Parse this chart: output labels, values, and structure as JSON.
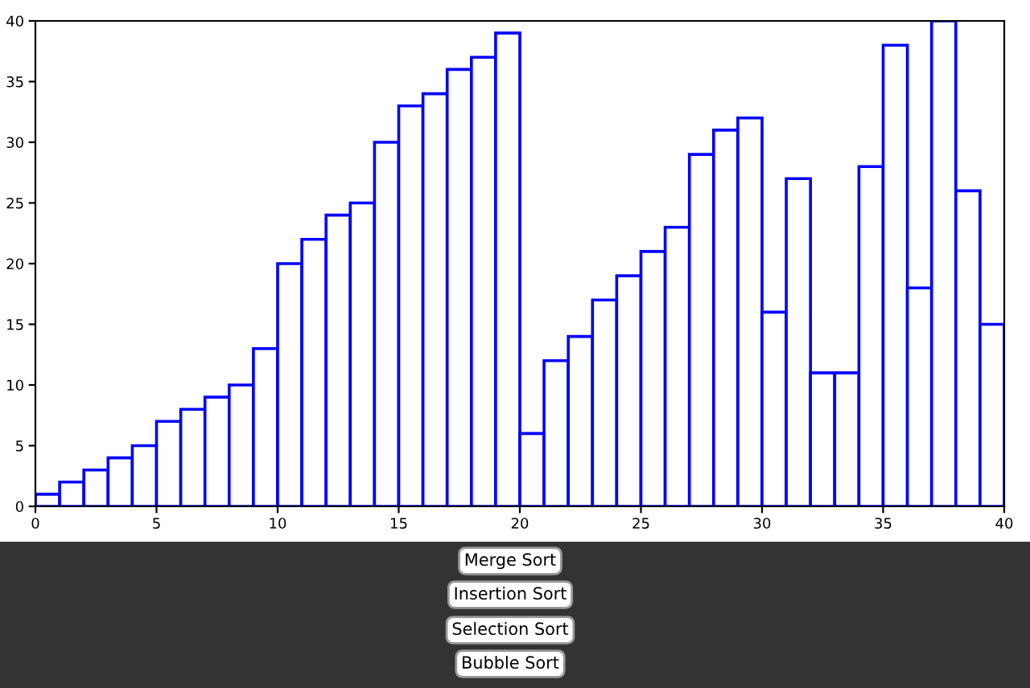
{
  "chart_data": {
    "type": "histogram",
    "bins": [
      0,
      1,
      2,
      3,
      4,
      5,
      6,
      7,
      8,
      9,
      10,
      11,
      12,
      13,
      14,
      15,
      16,
      17,
      18,
      19,
      20,
      21,
      22,
      23,
      24,
      25,
      26,
      27,
      28,
      29,
      30,
      31,
      32,
      33,
      34,
      35,
      36,
      37,
      38,
      39,
      40
    ],
    "values": [
      1,
      2,
      3,
      4,
      5,
      7,
      8,
      9,
      10,
      13,
      20,
      22,
      24,
      25,
      30,
      33,
      34,
      36,
      37,
      39,
      6,
      12,
      14,
      17,
      19,
      21,
      23,
      29,
      31,
      32,
      16,
      27,
      11,
      11,
      28,
      38,
      18,
      40,
      26,
      15
    ],
    "color": "#0000ff",
    "xlim": [
      0,
      40
    ],
    "xticks": [
      0,
      5,
      10,
      15,
      20,
      25,
      30,
      35,
      40
    ],
    "ylim": [
      0,
      40
    ],
    "yticks": [
      0,
      5,
      10,
      15,
      20,
      25,
      30,
      35,
      40
    ],
    "grid": false,
    "annotations": [
      "Merge Sort",
      "Insertion Sort",
      "Selection Sort",
      "Bubble Sort"
    ]
  }
}
